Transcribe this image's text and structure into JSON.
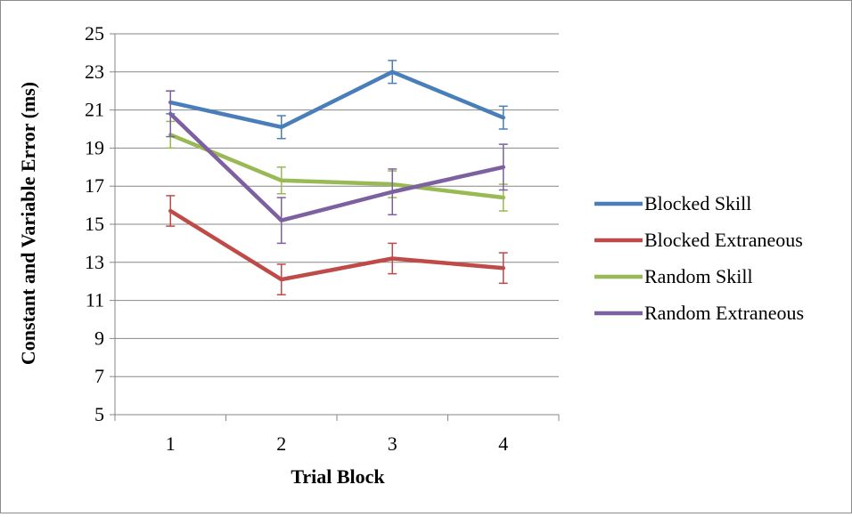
{
  "chart_data": {
    "type": "line",
    "title": "",
    "xlabel": "Trial Block",
    "ylabel": "Constant and Variable Error (ms)",
    "categories": [
      "1",
      "2",
      "3",
      "4"
    ],
    "ylim": [
      5,
      25
    ],
    "yticks": [
      5,
      7,
      9,
      11,
      13,
      15,
      17,
      19,
      21,
      23,
      25
    ],
    "grid": true,
    "legend_position": "right",
    "series": [
      {
        "name": "Blocked Skill",
        "color": "#4a7ebb",
        "values": [
          21.4,
          20.1,
          23.0,
          20.6
        ],
        "errors": [
          0.6,
          0.6,
          0.6,
          0.6
        ]
      },
      {
        "name": "Blocked Extraneous",
        "color": "#be4b48",
        "values": [
          15.7,
          12.1,
          13.2,
          12.7
        ],
        "errors": [
          0.8,
          0.8,
          0.8,
          0.8
        ]
      },
      {
        "name": "Random Skill",
        "color": "#98b954",
        "values": [
          19.7,
          17.3,
          17.1,
          16.4
        ],
        "errors": [
          0.7,
          0.7,
          0.7,
          0.7
        ]
      },
      {
        "name": "Random Extraneous",
        "color": "#7d60a0",
        "values": [
          20.8,
          15.2,
          16.7,
          18.0
        ],
        "errors": [
          1.2,
          1.2,
          1.2,
          1.2
        ]
      }
    ]
  }
}
